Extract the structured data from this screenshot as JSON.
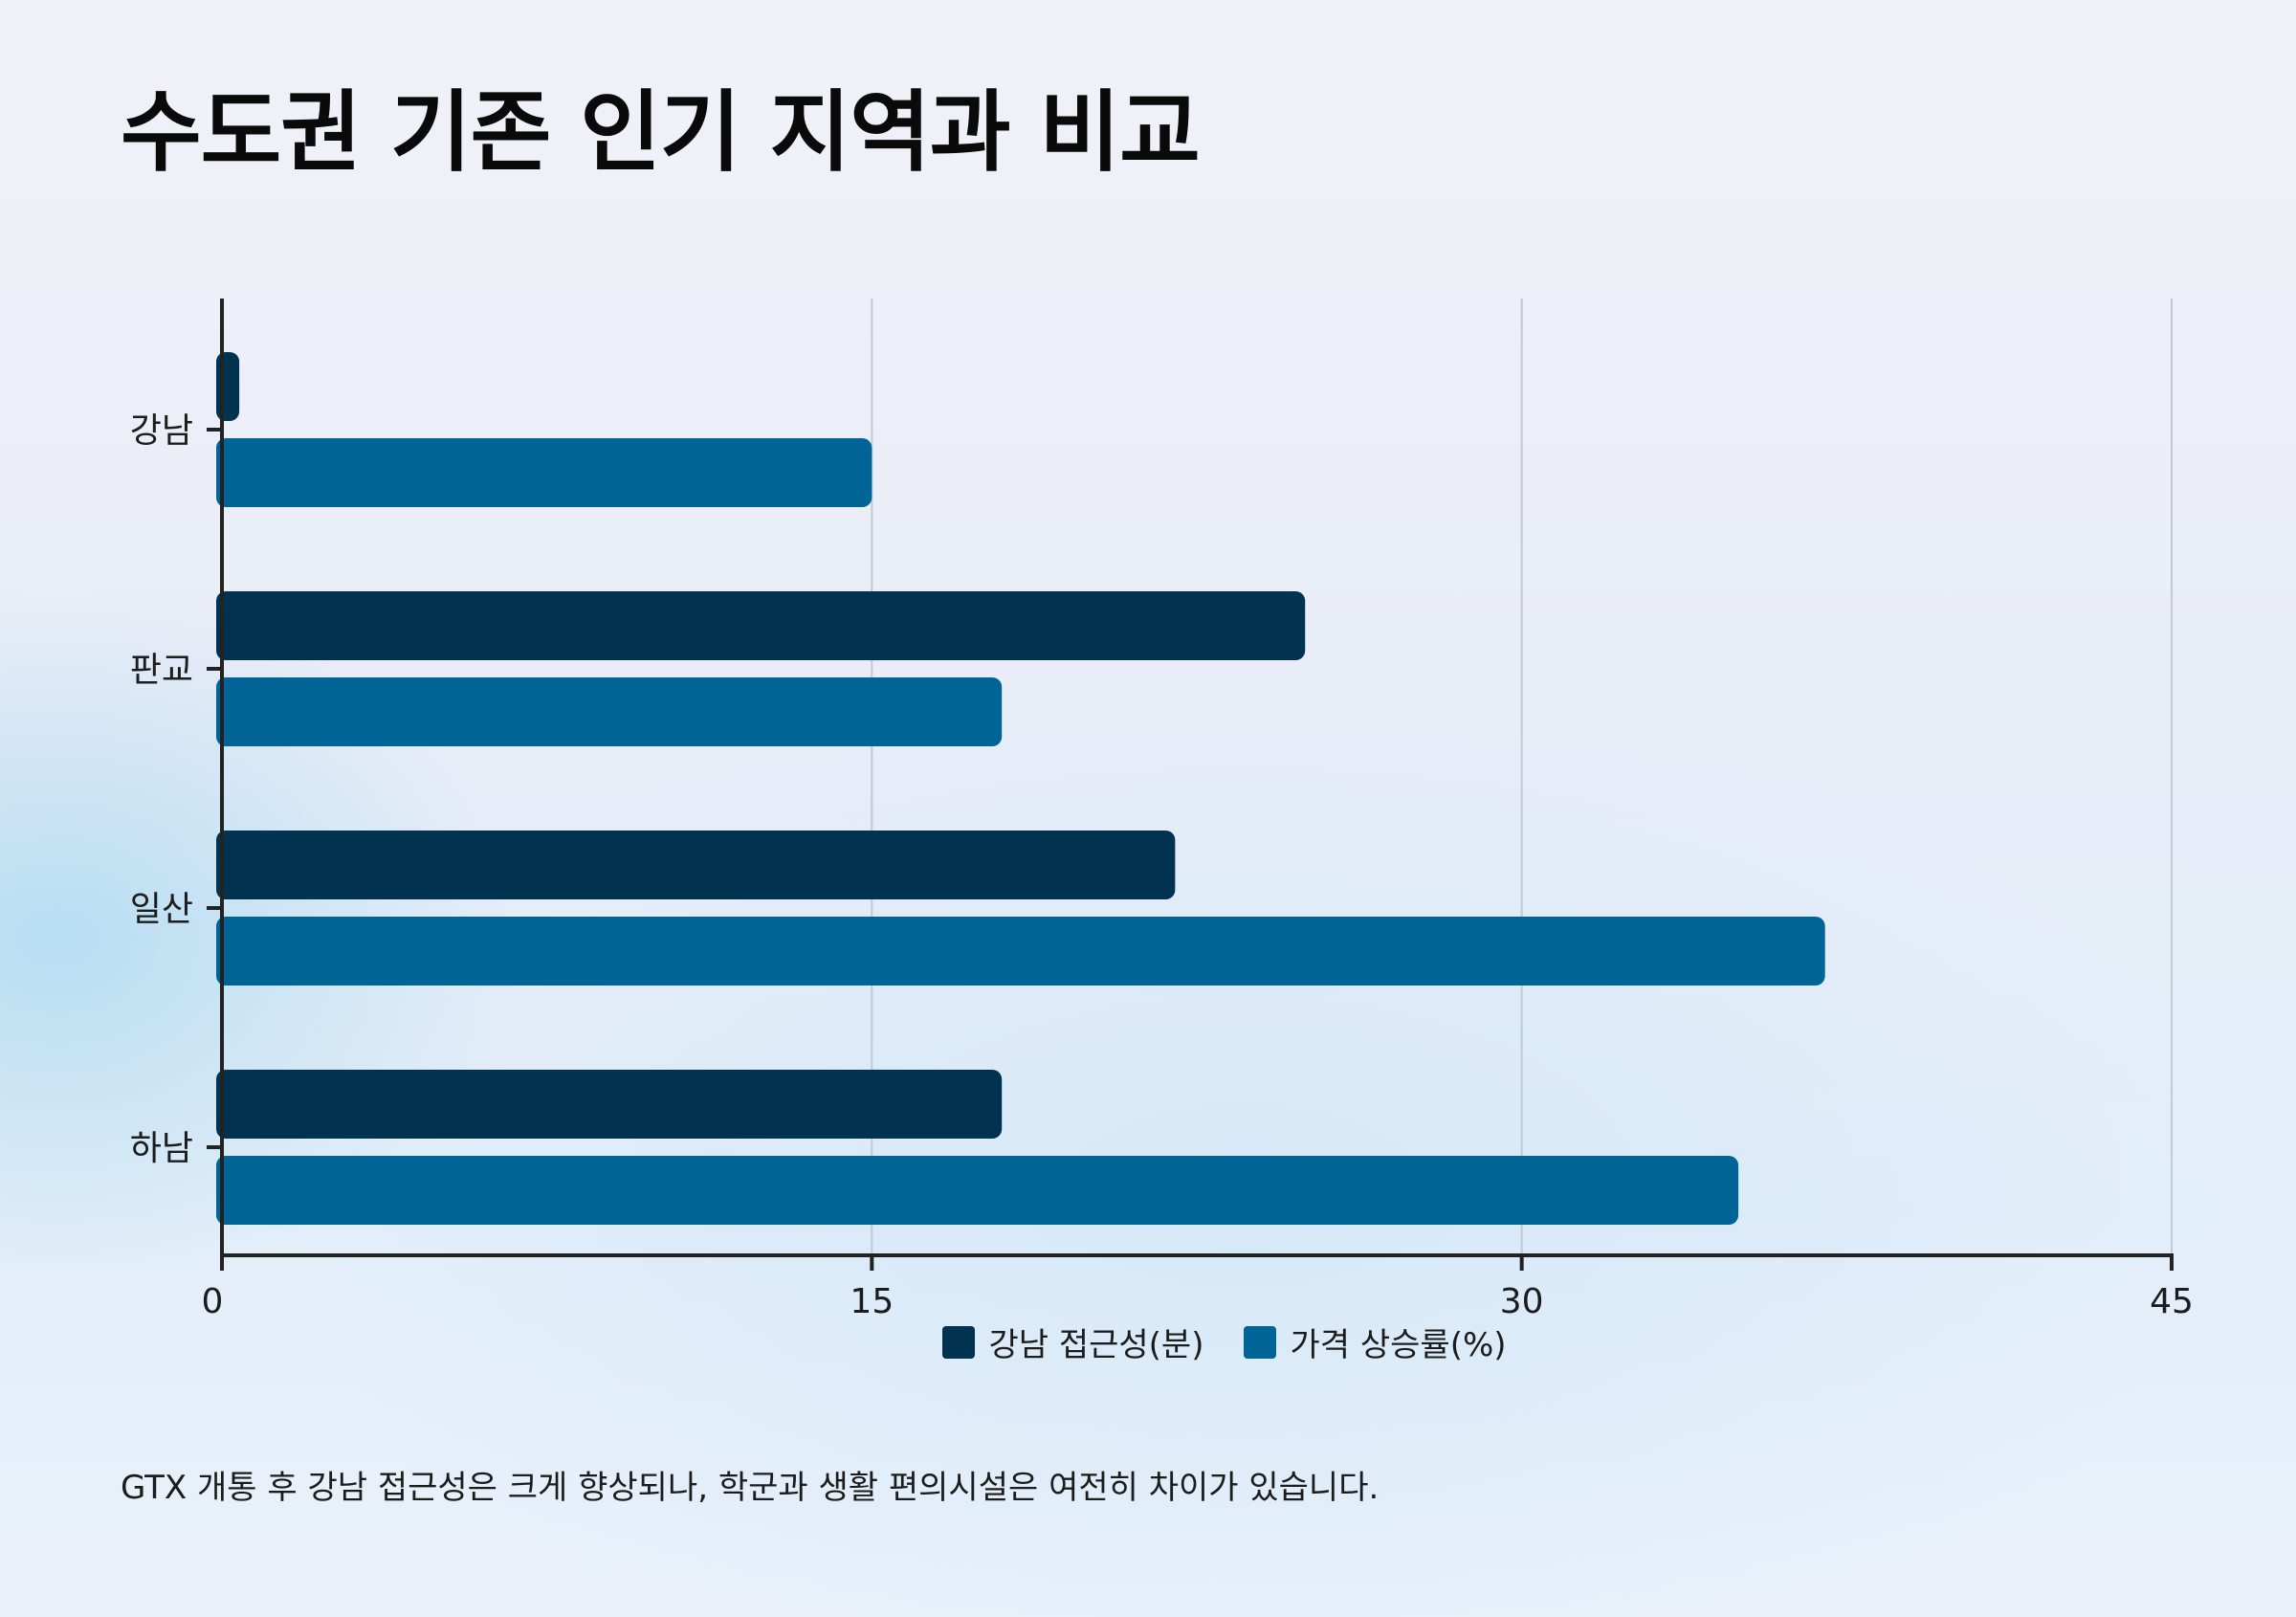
{
  "title": "수도권 기존 인기 지역과 비교",
  "note": "GTX 개통 후 강남 접근성은 크게 향상되나, 학군과 생활 편의시설은 여전히 차이가 있습니다.",
  "colors": {
    "series1": "#01324f",
    "series2": "#016496",
    "axis": "#222222",
    "grid": "#c3c9d2"
  },
  "chart_data": {
    "type": "bar",
    "orientation": "horizontal",
    "title": "수도권 기존 인기 지역과 비교",
    "categories": [
      "강남",
      "판교",
      "일산",
      "하남"
    ],
    "series": [
      {
        "name": "강남 접근성(분)",
        "values": [
          0.4,
          25,
          22,
          18
        ],
        "color": "#01324f"
      },
      {
        "name": "가격 상승률(%)",
        "values": [
          15,
          18,
          37,
          35
        ],
        "color": "#016496"
      }
    ],
    "xlim": [
      0,
      45
    ],
    "xticks": [
      "0",
      "15",
      "30",
      "45"
    ],
    "grid": true,
    "legend": "bottom-center"
  }
}
